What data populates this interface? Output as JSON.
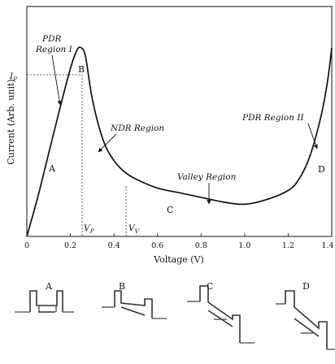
{
  "chart_data": {
    "type": "line",
    "title": "",
    "xlabel": "Voltage (V)",
    "ylabel": "Current (Arb. unit)",
    "xlim": [
      0,
      1.4
    ],
    "x_ticks": [
      "0",
      "0.2",
      "0.4",
      "0.6",
      "0.8",
      "1.0",
      "1.2",
      "1.4"
    ],
    "y_ticks_shown": false,
    "grid": false,
    "series": [
      {
        "x": [
          0,
          0.05,
          0.1,
          0.15,
          0.2,
          0.23,
          0.25,
          0.27,
          0.3,
          0.35,
          0.4,
          0.45,
          0.5,
          0.6,
          0.7,
          0.8,
          0.9,
          1.0,
          1.1,
          1.2,
          1.25,
          1.3,
          1.35,
          1.38,
          1.4
        ],
        "y": [
          0,
          0.17,
          0.36,
          0.55,
          0.73,
          0.81,
          0.82,
          0.78,
          0.6,
          0.42,
          0.33,
          0.28,
          0.25,
          0.21,
          0.19,
          0.17,
          0.15,
          0.14,
          0.16,
          0.2,
          0.25,
          0.35,
          0.52,
          0.67,
          0.82
        ]
      }
    ],
    "reference_lines": {
      "peak": {
        "x": 0.25,
        "y": 0.82,
        "x_label": "V_P",
        "y_label": "I_P"
      },
      "valley": {
        "x": 0.46,
        "x_label": "V_V"
      }
    },
    "point_labels": [
      {
        "text": "A",
        "x": 0.07,
        "y": 0.32
      },
      {
        "text": "B",
        "x": 0.26,
        "y": 0.86
      },
      {
        "text": "C",
        "x": 0.64,
        "y": 0.12
      },
      {
        "text": "D",
        "x": 1.35,
        "y": 0.36
      }
    ],
    "annotations": [
      {
        "text": "PDR Region I",
        "x": 0.14,
        "y": 0.55
      },
      {
        "text": "NDR Region",
        "x": 0.33,
        "y": 0.45
      },
      {
        "text": "Valley Region",
        "x": 0.84,
        "y": 0.17
      },
      {
        "text": "PDR Region II",
        "x": 1.34,
        "y": 0.42
      }
    ],
    "band_diagrams": [
      "A",
      "B",
      "C",
      "D"
    ]
  },
  "text": {
    "ylabel": "Current (Arb. unit)",
    "xlabel": "Voltage (V)",
    "ip_sub": "P",
    "vp_sub": "P",
    "vv_sub": "V",
    "lab_a": "A",
    "lab_b": "B",
    "lab_c": "C",
    "lab_d": "D",
    "pdr1_l1": "PDR",
    "pdr1_l2": "Region I",
    "ndr": "NDR Region",
    "valley": "Valley Region",
    "pdr2": "PDR Region II",
    "band_a": "A",
    "band_b": "B",
    "band_c": "C",
    "band_d": "D"
  }
}
